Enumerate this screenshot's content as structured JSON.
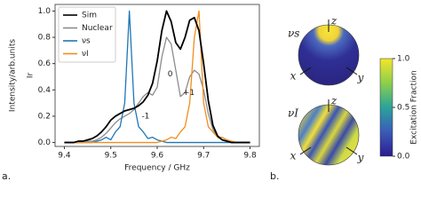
{
  "chart_data": [
    {
      "type": "line",
      "xlabel": "Frequency / GHz",
      "ylabel": "Intensity/arb.units",
      "ylabel_overlay": "Ir",
      "x": [
        9.4,
        9.41,
        9.42,
        9.43,
        9.44,
        9.45,
        9.46,
        9.47,
        9.48,
        9.49,
        9.5,
        9.51,
        9.52,
        9.53,
        9.54,
        9.55,
        9.56,
        9.57,
        9.58,
        9.59,
        9.6,
        9.61,
        9.62,
        9.63,
        9.64,
        9.65,
        9.66,
        9.67,
        9.68,
        9.69,
        9.7,
        9.71,
        9.72,
        9.73,
        9.74,
        9.75,
        9.76,
        9.77,
        9.78,
        9.79,
        9.8
      ],
      "series": [
        {
          "name": "Sim",
          "color": "#000000",
          "values": [
            0,
            0,
            0,
            0.01,
            0.01,
            0.02,
            0.03,
            0.05,
            0.08,
            0.12,
            0.17,
            0.2,
            0.22,
            0.24,
            0.25,
            0.26,
            0.28,
            0.31,
            0.36,
            0.45,
            0.62,
            0.85,
            1.0,
            0.92,
            0.76,
            0.71,
            0.8,
            0.93,
            0.95,
            0.85,
            0.6,
            0.32,
            0.13,
            0.05,
            0.02,
            0.01,
            0,
            0,
            0,
            0,
            0
          ]
        },
        {
          "name": "Nuclear",
          "color": "#8c8c8c",
          "values": [
            0,
            0,
            0,
            0,
            0,
            0.01,
            0.01,
            0.02,
            0.04,
            0.07,
            0.11,
            0.15,
            0.18,
            0.2,
            0.22,
            0.25,
            0.3,
            0.35,
            0.38,
            0.36,
            0.42,
            0.65,
            0.8,
            0.75,
            0.55,
            0.35,
            0.38,
            0.5,
            0.55,
            0.52,
            0.4,
            0.22,
            0.1,
            0.04,
            0.02,
            0.01,
            0,
            0,
            0,
            0,
            0
          ]
        },
        {
          "name": "νs",
          "color": "#1f77b4",
          "values": [
            0,
            0,
            0,
            0,
            0,
            0,
            0,
            0.01,
            0.02,
            0.04,
            0.02,
            0.08,
            0.12,
            0.3,
            1.0,
            0.3,
            0.12,
            0.08,
            0.03,
            0.04,
            0.02,
            0.01,
            0,
            0,
            0,
            0,
            0,
            0,
            0,
            0,
            0,
            0,
            0,
            0,
            0,
            0,
            0,
            0,
            0,
            0,
            0
          ]
        },
        {
          "name": "νI",
          "color": "#f28e1c",
          "values": [
            0,
            0,
            0,
            0,
            0,
            0,
            0,
            0,
            0,
            0,
            0,
            0,
            0,
            0,
            0,
            0,
            0,
            0,
            0,
            0,
            0,
            0.01,
            0.02,
            0.04,
            0.03,
            0.08,
            0.12,
            0.3,
            0.8,
            1.0,
            0.3,
            0.12,
            0.08,
            0.04,
            0.04,
            0.02,
            0.01,
            0,
            0,
            0,
            0
          ]
        }
      ],
      "xlim": [
        9.38,
        9.82
      ],
      "xticks": [
        9.4,
        9.5,
        9.6,
        9.7,
        9.8
      ],
      "ylim": [
        -0.03,
        1.05
      ],
      "yticks": [
        {
          "value": 0,
          "label": "0.0"
        },
        0.2,
        0.4,
        0.6,
        0.8,
        {
          "value": 1,
          "label": "1.0"
        }
      ],
      "annotations": [
        "0",
        "-1",
        "+1"
      ],
      "legend": "upper left"
    }
  ],
  "panel_labels": [
    "a.",
    "b."
  ],
  "spheres": [
    {
      "label": "νs",
      "axes": [
        "z",
        "x",
        "y"
      ]
    },
    {
      "label": "νI",
      "axes": [
        "z",
        "x",
        "y"
      ]
    }
  ],
  "colorbar": {
    "label": "Excitation Fraction",
    "lim": [
      0,
      1
    ],
    "ticks": [
      {
        "value": 0,
        "label": "0.0"
      },
      0.5,
      {
        "value": 1,
        "label": "1.0"
      }
    ]
  }
}
